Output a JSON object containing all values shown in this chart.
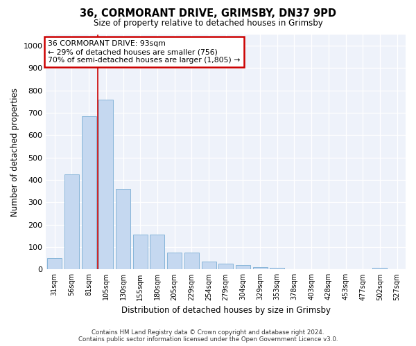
{
  "title1": "36, CORMORANT DRIVE, GRIMSBY, DN37 9PD",
  "title2": "Size of property relative to detached houses in Grimsby",
  "xlabel": "Distribution of detached houses by size in Grimsby",
  "ylabel": "Number of detached properties",
  "categories": [
    "31sqm",
    "56sqm",
    "81sqm",
    "105sqm",
    "130sqm",
    "155sqm",
    "180sqm",
    "205sqm",
    "229sqm",
    "254sqm",
    "279sqm",
    "304sqm",
    "329sqm",
    "353sqm",
    "378sqm",
    "403sqm",
    "428sqm",
    "453sqm",
    "477sqm",
    "502sqm",
    "527sqm"
  ],
  "values": [
    50,
    425,
    685,
    760,
    360,
    155,
    155,
    75,
    75,
    35,
    25,
    20,
    10,
    7,
    0,
    0,
    0,
    0,
    0,
    8,
    0
  ],
  "bar_color": "#c5d8f0",
  "bar_edge_color": "#7aaed4",
  "annotation_box_text": "36 CORMORANT DRIVE: 93sqm\n← 29% of detached houses are smaller (756)\n70% of semi-detached houses are larger (1,805) →",
  "annotation_box_color": "#ffffff",
  "annotation_box_edge_color": "#cc0000",
  "background_color": "#eef2fa",
  "ylim": [
    0,
    1050
  ],
  "yticks": [
    0,
    100,
    200,
    300,
    400,
    500,
    600,
    700,
    800,
    900,
    1000
  ],
  "red_line_x": 2.5,
  "footer_line1": "Contains HM Land Registry data © Crown copyright and database right 2024.",
  "footer_line2": "Contains public sector information licensed under the Open Government Licence v3.0."
}
